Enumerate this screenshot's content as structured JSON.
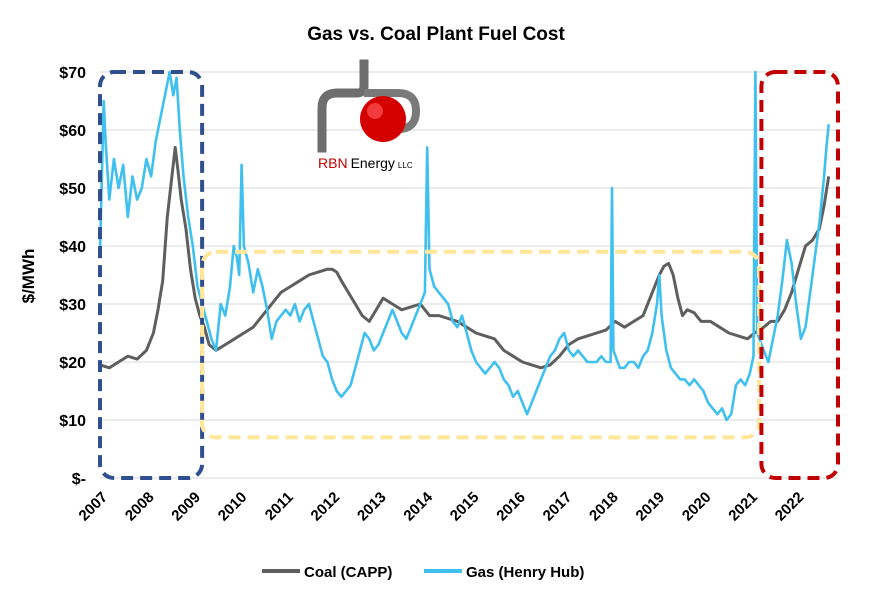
{
  "chart_data": {
    "type": "line",
    "title": "Gas vs. Coal Plant Fuel Cost",
    "subtitle": "",
    "xlabel": "",
    "ylabel": "$/MWh",
    "xlim": [
      2007.0,
      2022.9
    ],
    "ylim": [
      0,
      70
    ],
    "x_ticks": [
      "2007",
      "2008",
      "2009",
      "2010",
      "2011",
      "2012",
      "2013",
      "2014",
      "2015",
      "2016",
      "2017",
      "2018",
      "2019",
      "2020",
      "2021",
      "2022"
    ],
    "y_ticks": [
      {
        "value": 0,
        "label": "$-"
      },
      {
        "value": 10,
        "label": "$10"
      },
      {
        "value": 20,
        "label": "$20"
      },
      {
        "value": 30,
        "label": "$30"
      },
      {
        "value": 40,
        "label": "$40"
      },
      {
        "value": 50,
        "label": "$50"
      },
      {
        "value": 60,
        "label": "$60"
      },
      {
        "value": 70,
        "label": "$70"
      }
    ],
    "grid": true,
    "legend_position": "bottom",
    "series": [
      {
        "name": "Coal (CAPP)",
        "color": "#5f5f5f",
        "points": [
          [
            2007.0,
            19.5
          ],
          [
            2007.2,
            19
          ],
          [
            2007.4,
            20
          ],
          [
            2007.6,
            21
          ],
          [
            2007.8,
            20.5
          ],
          [
            2008.0,
            22
          ],
          [
            2008.15,
            25
          ],
          [
            2008.25,
            29
          ],
          [
            2008.35,
            34
          ],
          [
            2008.45,
            45
          ],
          [
            2008.55,
            52
          ],
          [
            2008.62,
            57
          ],
          [
            2008.68,
            53
          ],
          [
            2008.75,
            48
          ],
          [
            2008.85,
            43
          ],
          [
            2008.95,
            36
          ],
          [
            2009.05,
            31
          ],
          [
            2009.15,
            28
          ],
          [
            2009.25,
            26
          ],
          [
            2009.35,
            23
          ],
          [
            2009.5,
            22
          ],
          [
            2009.7,
            23
          ],
          [
            2009.9,
            24
          ],
          [
            2010.1,
            25
          ],
          [
            2010.3,
            26
          ],
          [
            2010.5,
            28
          ],
          [
            2010.7,
            30
          ],
          [
            2010.9,
            32
          ],
          [
            2011.1,
            33
          ],
          [
            2011.3,
            34
          ],
          [
            2011.5,
            35
          ],
          [
            2011.7,
            35.5
          ],
          [
            2011.9,
            36
          ],
          [
            2012.0,
            36
          ],
          [
            2012.1,
            35.5
          ],
          [
            2012.2,
            34
          ],
          [
            2012.35,
            32
          ],
          [
            2012.5,
            30
          ],
          [
            2012.65,
            28
          ],
          [
            2012.8,
            27
          ],
          [
            2012.95,
            29
          ],
          [
            2013.1,
            31
          ],
          [
            2013.3,
            30
          ],
          [
            2013.5,
            29
          ],
          [
            2013.7,
            29.5
          ],
          [
            2013.9,
            30
          ],
          [
            2014.1,
            28
          ],
          [
            2014.3,
            28
          ],
          [
            2014.5,
            27.5
          ],
          [
            2014.7,
            27
          ],
          [
            2014.9,
            26
          ],
          [
            2015.1,
            25
          ],
          [
            2015.3,
            24.5
          ],
          [
            2015.5,
            24
          ],
          [
            2015.7,
            22
          ],
          [
            2015.9,
            21
          ],
          [
            2016.1,
            20
          ],
          [
            2016.3,
            19.5
          ],
          [
            2016.5,
            19
          ],
          [
            2016.7,
            19.5
          ],
          [
            2016.9,
            21
          ],
          [
            2017.1,
            23
          ],
          [
            2017.3,
            24
          ],
          [
            2017.5,
            24.5
          ],
          [
            2017.7,
            25
          ],
          [
            2017.9,
            25.5
          ],
          [
            2018.1,
            27
          ],
          [
            2018.3,
            26
          ],
          [
            2018.5,
            27
          ],
          [
            2018.7,
            28
          ],
          [
            2018.9,
            32
          ],
          [
            2019.05,
            35
          ],
          [
            2019.15,
            36.5
          ],
          [
            2019.25,
            37
          ],
          [
            2019.35,
            35
          ],
          [
            2019.45,
            31
          ],
          [
            2019.55,
            28
          ],
          [
            2019.65,
            29
          ],
          [
            2019.8,
            28.5
          ],
          [
            2019.95,
            27
          ],
          [
            2020.15,
            27
          ],
          [
            2020.35,
            26
          ],
          [
            2020.55,
            25
          ],
          [
            2020.75,
            24.5
          ],
          [
            2020.95,
            24
          ],
          [
            2021.1,
            25
          ],
          [
            2021.3,
            26
          ],
          [
            2021.45,
            27
          ],
          [
            2021.6,
            27
          ],
          [
            2021.75,
            29
          ],
          [
            2021.9,
            32
          ],
          [
            2022.05,
            36
          ],
          [
            2022.2,
            40
          ],
          [
            2022.35,
            41
          ],
          [
            2022.5,
            43
          ],
          [
            2022.6,
            47
          ],
          [
            2022.7,
            52
          ]
        ]
      },
      {
        "name": "Gas (Henry Hub)",
        "color": "#3fc0ef",
        "points": [
          [
            2007.0,
            39
          ],
          [
            2007.05,
            55
          ],
          [
            2007.08,
            65
          ],
          [
            2007.12,
            58
          ],
          [
            2007.2,
            48
          ],
          [
            2007.3,
            55
          ],
          [
            2007.4,
            50
          ],
          [
            2007.5,
            54
          ],
          [
            2007.6,
            45
          ],
          [
            2007.7,
            52
          ],
          [
            2007.8,
            48
          ],
          [
            2007.9,
            50
          ],
          [
            2008.0,
            55
          ],
          [
            2008.1,
            52
          ],
          [
            2008.2,
            58
          ],
          [
            2008.3,
            62
          ],
          [
            2008.4,
            66
          ],
          [
            2008.5,
            70
          ],
          [
            2008.58,
            66
          ],
          [
            2008.65,
            69
          ],
          [
            2008.72,
            60
          ],
          [
            2008.8,
            52
          ],
          [
            2008.9,
            45
          ],
          [
            2009.0,
            40
          ],
          [
            2009.1,
            33
          ],
          [
            2009.2,
            30
          ],
          [
            2009.3,
            27
          ],
          [
            2009.4,
            24
          ],
          [
            2009.5,
            22
          ],
          [
            2009.6,
            30
          ],
          [
            2009.7,
            28
          ],
          [
            2009.8,
            33
          ],
          [
            2009.88,
            40
          ],
          [
            2009.95,
            38
          ],
          [
            2010.0,
            35
          ],
          [
            2010.05,
            54
          ],
          [
            2010.1,
            40
          ],
          [
            2010.2,
            37
          ],
          [
            2010.3,
            32
          ],
          [
            2010.4,
            36
          ],
          [
            2010.5,
            33
          ],
          [
            2010.6,
            29
          ],
          [
            2010.7,
            24
          ],
          [
            2010.8,
            27
          ],
          [
            2010.9,
            28
          ],
          [
            2011.0,
            29
          ],
          [
            2011.1,
            28
          ],
          [
            2011.2,
            30
          ],
          [
            2011.3,
            27
          ],
          [
            2011.4,
            29
          ],
          [
            2011.5,
            30
          ],
          [
            2011.6,
            27
          ],
          [
            2011.7,
            24
          ],
          [
            2011.8,
            21
          ],
          [
            2011.9,
            20
          ],
          [
            2012.0,
            17
          ],
          [
            2012.1,
            15
          ],
          [
            2012.2,
            14
          ],
          [
            2012.3,
            15
          ],
          [
            2012.4,
            16
          ],
          [
            2012.5,
            19
          ],
          [
            2012.6,
            22
          ],
          [
            2012.7,
            25
          ],
          [
            2012.8,
            24
          ],
          [
            2012.9,
            22
          ],
          [
            2013.0,
            23
          ],
          [
            2013.1,
            25
          ],
          [
            2013.2,
            27
          ],
          [
            2013.3,
            29
          ],
          [
            2013.4,
            27
          ],
          [
            2013.5,
            25
          ],
          [
            2013.6,
            24
          ],
          [
            2013.7,
            26
          ],
          [
            2013.8,
            28
          ],
          [
            2013.9,
            30
          ],
          [
            2014.0,
            32
          ],
          [
            2014.05,
            57
          ],
          [
            2014.1,
            36
          ],
          [
            2014.2,
            33
          ],
          [
            2014.3,
            32
          ],
          [
            2014.4,
            31
          ],
          [
            2014.5,
            30
          ],
          [
            2014.6,
            27
          ],
          [
            2014.7,
            26
          ],
          [
            2014.8,
            28
          ],
          [
            2014.9,
            25
          ],
          [
            2015.0,
            22
          ],
          [
            2015.1,
            20
          ],
          [
            2015.2,
            19
          ],
          [
            2015.3,
            18
          ],
          [
            2015.4,
            19
          ],
          [
            2015.5,
            20
          ],
          [
            2015.6,
            19
          ],
          [
            2015.7,
            17
          ],
          [
            2015.8,
            16
          ],
          [
            2015.9,
            14
          ],
          [
            2016.0,
            15
          ],
          [
            2016.1,
            13
          ],
          [
            2016.2,
            11
          ],
          [
            2016.3,
            13
          ],
          [
            2016.4,
            15
          ],
          [
            2016.5,
            17
          ],
          [
            2016.6,
            19
          ],
          [
            2016.7,
            21
          ],
          [
            2016.8,
            22
          ],
          [
            2016.9,
            24
          ],
          [
            2017.0,
            25
          ],
          [
            2017.1,
            22
          ],
          [
            2017.2,
            21
          ],
          [
            2017.3,
            22
          ],
          [
            2017.4,
            21
          ],
          [
            2017.5,
            20
          ],
          [
            2017.6,
            20
          ],
          [
            2017.7,
            20
          ],
          [
            2017.8,
            21
          ],
          [
            2017.9,
            20
          ],
          [
            2018.0,
            20
          ],
          [
            2018.03,
            50
          ],
          [
            2018.06,
            22
          ],
          [
            2018.2,
            19
          ],
          [
            2018.3,
            19
          ],
          [
            2018.4,
            20
          ],
          [
            2018.5,
            20
          ],
          [
            2018.6,
            19
          ],
          [
            2018.7,
            21
          ],
          [
            2018.8,
            22
          ],
          [
            2018.9,
            25
          ],
          [
            2019.0,
            30
          ],
          [
            2019.05,
            35
          ],
          [
            2019.1,
            28
          ],
          [
            2019.2,
            22
          ],
          [
            2019.3,
            19
          ],
          [
            2019.4,
            18
          ],
          [
            2019.5,
            17
          ],
          [
            2019.6,
            17
          ],
          [
            2019.7,
            16
          ],
          [
            2019.8,
            17
          ],
          [
            2019.9,
            16
          ],
          [
            2020.0,
            15
          ],
          [
            2020.1,
            13
          ],
          [
            2020.2,
            12
          ],
          [
            2020.3,
            11
          ],
          [
            2020.4,
            12
          ],
          [
            2020.5,
            10
          ],
          [
            2020.6,
            11
          ],
          [
            2020.7,
            16
          ],
          [
            2020.8,
            17
          ],
          [
            2020.9,
            16
          ],
          [
            2021.0,
            18
          ],
          [
            2021.08,
            21
          ],
          [
            2021.12,
            70
          ],
          [
            2021.16,
            25
          ],
          [
            2021.3,
            22
          ],
          [
            2021.4,
            20
          ],
          [
            2021.5,
            24
          ],
          [
            2021.6,
            28
          ],
          [
            2021.7,
            34
          ],
          [
            2021.8,
            41
          ],
          [
            2021.9,
            37
          ],
          [
            2022.0,
            30
          ],
          [
            2022.1,
            24
          ],
          [
            2022.2,
            26
          ],
          [
            2022.3,
            32
          ],
          [
            2022.4,
            38
          ],
          [
            2022.5,
            44
          ],
          [
            2022.6,
            52
          ],
          [
            2022.65,
            57
          ],
          [
            2022.7,
            61
          ]
        ]
      }
    ],
    "annotations": [
      {
        "shape": "dashed-box",
        "color": "#2f4f8f",
        "x_range": [
          2007.0,
          2009.2
        ],
        "y_range": [
          0,
          70
        ]
      },
      {
        "shape": "dashed-box",
        "color": "#ffe699",
        "x_range": [
          2009.2,
          2021.2
        ],
        "y_range": [
          7,
          39
        ]
      },
      {
        "shape": "dashed-box",
        "color": "#c00000",
        "x_range": [
          2021.25,
          2022.9
        ],
        "y_range": [
          0,
          70
        ]
      }
    ]
  },
  "logo": {
    "brand_prefix": "RBN",
    "brand_suffix": "Energy",
    "suffix_small": "LLC"
  }
}
